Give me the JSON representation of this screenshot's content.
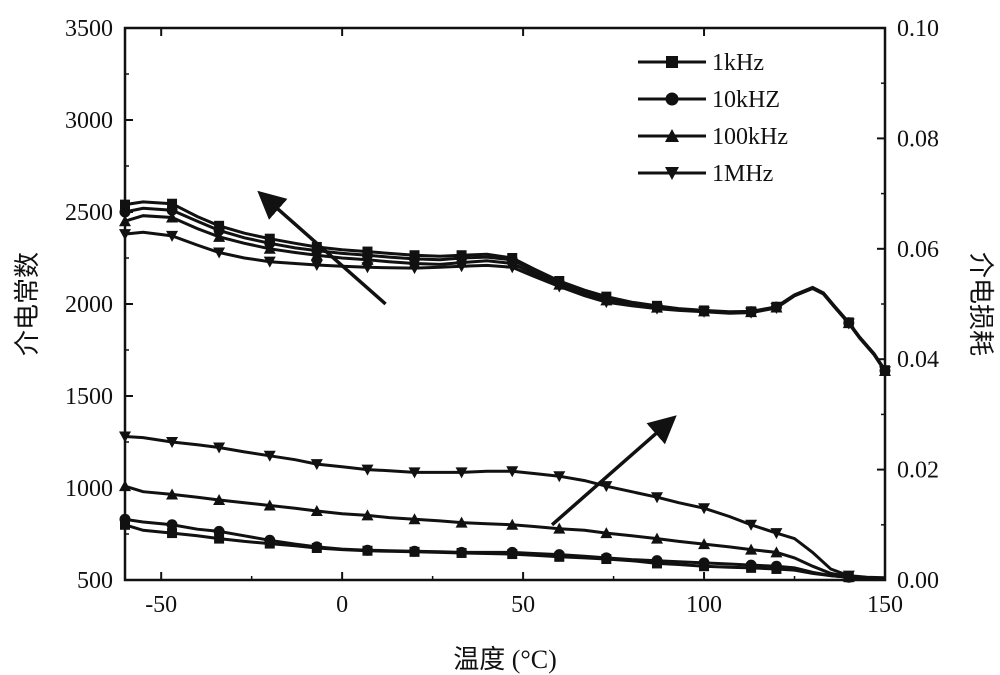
{
  "chart_data": {
    "type": "line",
    "title": "",
    "xlabel": "温度 (°C)",
    "ylabel": "介电常数",
    "y2label": "介电损耗",
    "xlim": [
      -60,
      150
    ],
    "ylim": [
      500,
      3500
    ],
    "y2lim": [
      0.0,
      0.1
    ],
    "x_ticks": [
      -50,
      0,
      50,
      100,
      150
    ],
    "y_ticks": [
      500,
      1000,
      1500,
      2000,
      2500,
      3000,
      3500
    ],
    "y2_ticks": [
      "0.00",
      "0.02",
      "0.04",
      "0.06",
      "0.08",
      "0.10"
    ],
    "legend_position": "top-right",
    "series": [
      {
        "name": "1kHz",
        "marker": "square",
        "permittivity": {
          "x": [
            -60,
            -55,
            -47,
            -40,
            -34,
            -27,
            -20,
            -13,
            -7,
            0,
            7,
            13,
            20,
            27,
            33,
            40,
            47,
            53,
            60,
            67,
            73,
            80,
            87,
            93,
            100,
            107,
            113,
            120,
            125,
            130,
            133,
            136,
            140,
            143,
            147,
            150
          ],
          "y": [
            2540,
            2555,
            2545,
            2475,
            2425,
            2385,
            2355,
            2330,
            2310,
            2295,
            2285,
            2275,
            2265,
            2260,
            2265,
            2270,
            2250,
            2190,
            2125,
            2075,
            2040,
            2010,
            1990,
            1975,
            1965,
            1958,
            1960,
            1985,
            2050,
            2090,
            2060,
            1990,
            1900,
            1820,
            1730,
            1640
          ]
        },
        "loss": {
          "x": [
            -60,
            -55,
            -47,
            -40,
            -34,
            -27,
            -20,
            -13,
            -7,
            0,
            7,
            13,
            20,
            27,
            33,
            40,
            47,
            53,
            60,
            67,
            73,
            80,
            87,
            93,
            100,
            107,
            113,
            120,
            125,
            130,
            135,
            140,
            145,
            150
          ],
          "y": [
            0.01,
            0.009,
            0.0085,
            0.008,
            0.0075,
            0.007,
            0.0066,
            0.0062,
            0.0058,
            0.0055,
            0.0053,
            0.0052,
            0.0051,
            0.005,
            0.0049,
            0.0048,
            0.0047,
            0.0045,
            0.0042,
            0.004,
            0.0038,
            0.0035,
            0.003,
            0.0028,
            0.0025,
            0.0023,
            0.0022,
            0.002,
            0.0018,
            0.0012,
            0.0008,
            0.0005,
            0.0003,
            0.0002
          ]
        }
      },
      {
        "name": "10kHZ",
        "marker": "circle",
        "permittivity": {
          "x": [
            -60,
            -55,
            -47,
            -40,
            -34,
            -27,
            -20,
            -13,
            -7,
            0,
            7,
            13,
            20,
            27,
            33,
            40,
            47,
            53,
            60,
            67,
            73,
            80,
            87,
            93,
            100,
            107,
            113,
            120,
            125,
            130,
            133,
            136,
            140,
            143,
            147,
            150
          ],
          "y": [
            2500,
            2520,
            2510,
            2450,
            2400,
            2360,
            2330,
            2305,
            2290,
            2275,
            2265,
            2255,
            2245,
            2240,
            2250,
            2255,
            2240,
            2180,
            2115,
            2065,
            2030,
            2005,
            1985,
            1972,
            1962,
            1955,
            1958,
            1983,
            2048,
            2088,
            2058,
            1988,
            1898,
            1818,
            1728,
            1638
          ]
        },
        "loss": {
          "x": [
            -60,
            -55,
            -47,
            -40,
            -34,
            -27,
            -20,
            -13,
            -7,
            0,
            7,
            13,
            20,
            27,
            33,
            40,
            47,
            53,
            60,
            67,
            73,
            80,
            87,
            93,
            100,
            107,
            113,
            120,
            125,
            130,
            135,
            140,
            145,
            150
          ],
          "y": [
            0.011,
            0.0105,
            0.01,
            0.0092,
            0.0088,
            0.008,
            0.0072,
            0.0065,
            0.006,
            0.0056,
            0.0054,
            0.0053,
            0.0052,
            0.0051,
            0.005,
            0.005,
            0.005,
            0.0048,
            0.0046,
            0.0043,
            0.004,
            0.0037,
            0.0035,
            0.0033,
            0.0031,
            0.0029,
            0.0027,
            0.0025,
            0.0022,
            0.0014,
            0.0008,
            0.0005,
            0.0003,
            0.0002
          ]
        }
      },
      {
        "name": "100kHz",
        "marker": "triangle-up",
        "permittivity": {
          "x": [
            -60,
            -55,
            -47,
            -40,
            -34,
            -27,
            -20,
            -13,
            -7,
            0,
            7,
            13,
            20,
            27,
            33,
            40,
            47,
            53,
            60,
            67,
            73,
            80,
            87,
            93,
            100,
            107,
            113,
            120,
            125,
            130,
            133,
            136,
            140,
            143,
            147,
            150
          ],
          "y": [
            2450,
            2480,
            2470,
            2410,
            2365,
            2330,
            2300,
            2280,
            2265,
            2250,
            2240,
            2230,
            2220,
            2215,
            2225,
            2235,
            2220,
            2165,
            2105,
            2055,
            2020,
            1998,
            1980,
            1968,
            1960,
            1953,
            1956,
            1981,
            2046,
            2086,
            2056,
            1986,
            1896,
            1816,
            1726,
            1636
          ]
        },
        "loss": {
          "x": [
            -60,
            -55,
            -47,
            -40,
            -34,
            -27,
            -20,
            -13,
            -7,
            0,
            7,
            13,
            20,
            27,
            33,
            40,
            47,
            53,
            60,
            67,
            73,
            80,
            87,
            93,
            100,
            107,
            113,
            120,
            125,
            130,
            135,
            140,
            145,
            150
          ],
          "y": [
            0.017,
            0.016,
            0.0155,
            0.015,
            0.0145,
            0.014,
            0.0135,
            0.013,
            0.0125,
            0.012,
            0.0117,
            0.0113,
            0.011,
            0.0107,
            0.0104,
            0.0102,
            0.01,
            0.0097,
            0.0093,
            0.009,
            0.0085,
            0.008,
            0.0075,
            0.007,
            0.0065,
            0.006,
            0.0055,
            0.005,
            0.004,
            0.0025,
            0.0012,
            0.0006,
            0.0004,
            0.0003
          ]
        }
      },
      {
        "name": "1MHz",
        "marker": "triangle-down",
        "permittivity": {
          "x": [
            -60,
            -55,
            -47,
            -40,
            -34,
            -27,
            -20,
            -13,
            -7,
            0,
            7,
            13,
            20,
            27,
            33,
            40,
            47,
            53,
            60,
            67,
            73,
            80,
            87,
            93,
            100,
            107,
            113,
            120,
            125,
            130,
            133,
            136,
            140,
            143,
            147,
            150
          ],
          "y": [
            2380,
            2390,
            2370,
            2320,
            2280,
            2250,
            2230,
            2220,
            2212,
            2205,
            2200,
            2197,
            2195,
            2200,
            2205,
            2210,
            2200,
            2150,
            2095,
            2045,
            2010,
            1990,
            1975,
            1965,
            1958,
            1950,
            1953,
            1978,
            2044,
            2084,
            2054,
            1984,
            1894,
            1814,
            1724,
            1634
          ]
        },
        "loss": {
          "x": [
            -60,
            -55,
            -47,
            -40,
            -34,
            -27,
            -20,
            -13,
            -7,
            0,
            7,
            13,
            20,
            27,
            33,
            40,
            47,
            53,
            60,
            67,
            73,
            80,
            87,
            93,
            100,
            107,
            113,
            120,
            125,
            130,
            135,
            140,
            145,
            150
          ],
          "y": [
            0.026,
            0.0258,
            0.025,
            0.0245,
            0.024,
            0.0232,
            0.0225,
            0.0218,
            0.021,
            0.0205,
            0.02,
            0.0198,
            0.0195,
            0.0195,
            0.0195,
            0.0197,
            0.0197,
            0.0193,
            0.0188,
            0.018,
            0.017,
            0.016,
            0.015,
            0.014,
            0.013,
            0.0115,
            0.01,
            0.0085,
            0.0075,
            0.005,
            0.002,
            0.0008,
            0.0005,
            0.0004
          ]
        }
      }
    ],
    "annotations": [
      {
        "kind": "arrow",
        "target": "left-axis",
        "from": [
          12,
          2000
        ],
        "to": [
          -22,
          2590
        ]
      },
      {
        "kind": "arrow",
        "target": "right-axis",
        "from": [
          58,
          0.01
        ],
        "to": [
          91,
          0.029
        ]
      }
    ]
  }
}
